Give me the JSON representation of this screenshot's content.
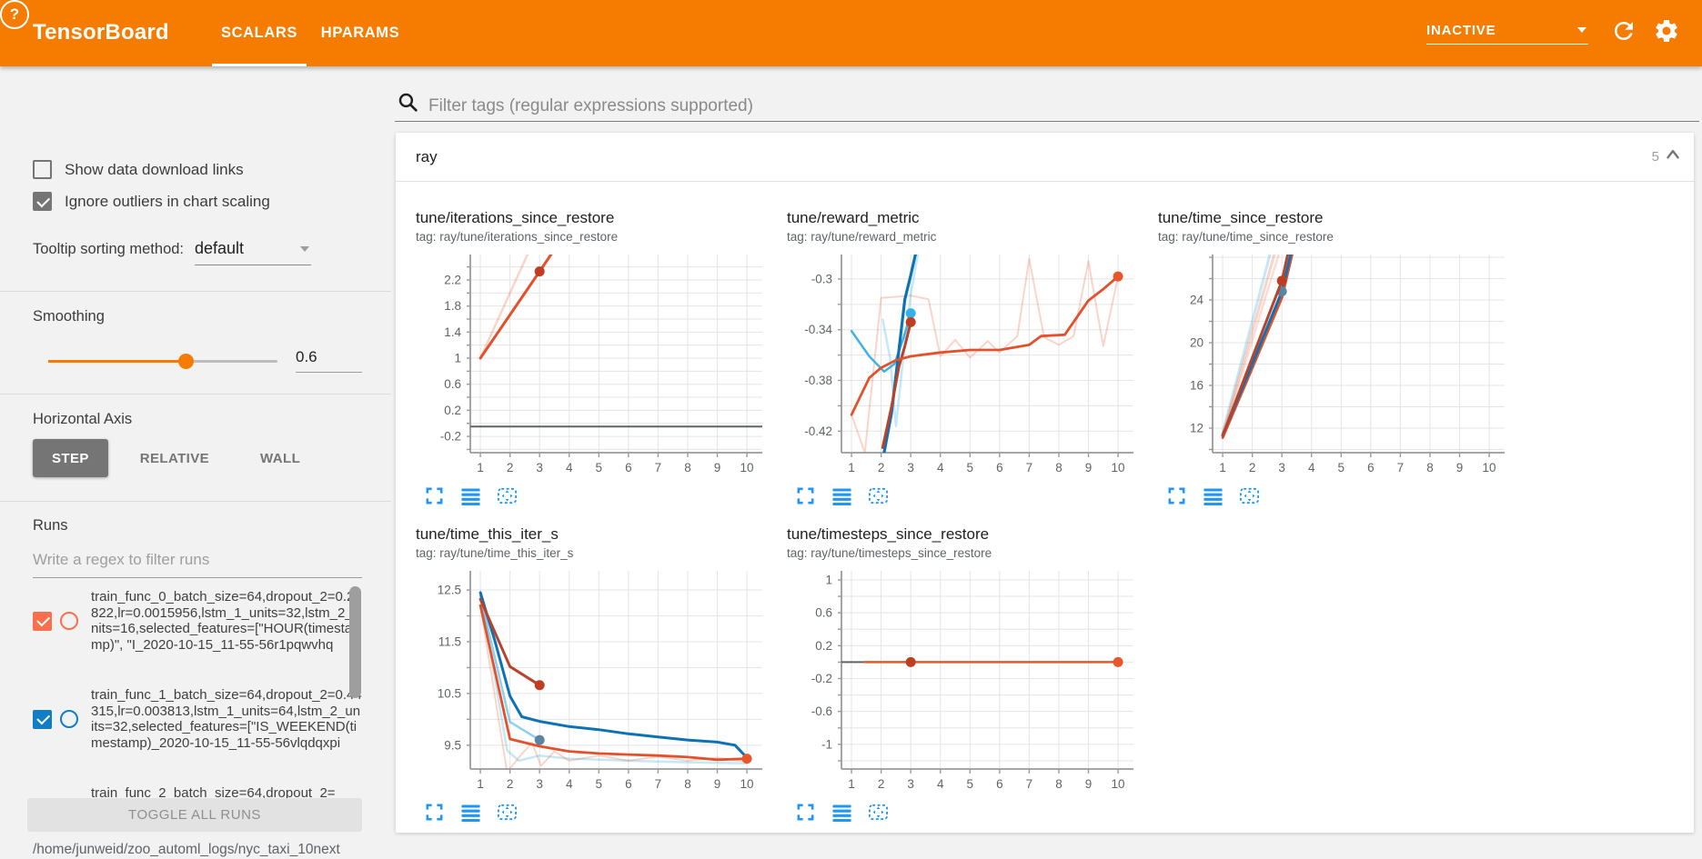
{
  "header": {
    "title": "TensorBoard",
    "tabs": [
      {
        "label": "SCALARS",
        "active": true
      },
      {
        "label": "HPARAMS",
        "active": false
      }
    ],
    "status_dropdown": "INACTIVE",
    "accent_color": "#f57c00"
  },
  "sidebar": {
    "checkboxes": [
      {
        "label": "Show data download links",
        "checked": false
      },
      {
        "label": "Ignore outliers in chart scaling",
        "checked": true
      }
    ],
    "tooltip_sorting": {
      "label": "Tooltip sorting method:",
      "value": "default"
    },
    "smoothing": {
      "label": "Smoothing",
      "value": "0.6",
      "percent": 60
    },
    "horizontal_axis": {
      "label": "Horizontal Axis",
      "options": [
        {
          "label": "STEP",
          "selected": true
        },
        {
          "label": "RELATIVE",
          "selected": false
        },
        {
          "label": "WALL",
          "selected": false
        }
      ]
    },
    "runs": {
      "label": "Runs",
      "filter_placeholder": "Write a regex to filter runs",
      "items": [
        {
          "name": "train_func_0_batch_size=64,dropout_2=0.21822,lr=0.0015956,lstm_1_units=32,lstm_2_units=16,selected_features=[\"HOUR(timestamp)\", \"I_2020-10-15_11-55-56r1pqwvhq",
          "color": "#fb6f4d",
          "checked": true
        },
        {
          "name": "train_func_1_batch_size=64,dropout_2=0.44315,lr=0.003813,lstm_1_units=64,lstm_2_units=32,selected_features=[\"IS_WEEKEND(timestamp)_2020-10-15_11-55-56vlqdqxpi",
          "color": "#0f7ec7",
          "checked": true
        },
        {
          "name": "train_func_2_batch_size=64,dropout_2=",
          "partial": true
        }
      ],
      "toggle_all_label": "TOGGLE ALL RUNS",
      "log_path": "/home/junweid/zoo_automl_logs/nyc_taxi_10next"
    }
  },
  "main": {
    "filter_placeholder": "Filter tags (regular expressions supported)",
    "section": {
      "name": "ray",
      "count": "5"
    },
    "toolbar_icons": [
      "expand",
      "data-table",
      "fit-domain"
    ],
    "toolbar_icon_color": "#2196f3"
  },
  "chart_data": [
    {
      "type": "line",
      "title": "tune/iterations_since_restore",
      "tag": "tag: ray/tune/iterations_since_restore",
      "xlim": [
        0.66,
        10.52
      ],
      "x_ticks": [
        1,
        2,
        3,
        4,
        5,
        6,
        7,
        8,
        9,
        10
      ],
      "ylim": [
        -0.45,
        2.59
      ],
      "grid_step": 0.2,
      "y_ticks": [
        [
          2.2,
          "2.2"
        ],
        [
          1.8,
          "1.8"
        ],
        [
          1.4,
          "1.4"
        ],
        [
          1,
          "1"
        ],
        [
          0.6,
          "0.6"
        ],
        [
          0.2,
          "0.2"
        ],
        [
          -0.2,
          "-0.2"
        ]
      ],
      "series": [
        {
          "name": "train_func_0 raw",
          "color": "#ef5327",
          "opacity": 0.25,
          "width": 2.5,
          "points": [
            [
              1,
              1
            ],
            [
              2.7,
              2.7
            ]
          ]
        },
        {
          "name": "flat-run",
          "color": "#5f6368",
          "opacity": 1,
          "width": 2,
          "points": [
            [
              0.66,
              -0.05
            ],
            [
              10.52,
              -0.05
            ]
          ]
        },
        {
          "name": "train_func_0 smoothed",
          "color": "#e2512b",
          "opacity": 1,
          "width": 3,
          "points": [
            [
              1,
              1
            ],
            [
              3,
              2.33
            ],
            [
              3.4,
              2.6
            ]
          ],
          "dot": [
            3,
            2.33
          ],
          "dot_color": "#bf3e22"
        }
      ]
    },
    {
      "type": "line",
      "title": "tune/reward_metric",
      "tag": "tag: ray/tune/reward_metric",
      "xlim": [
        0.66,
        10.52
      ],
      "x_ticks": [
        1,
        2,
        3,
        4,
        5,
        6,
        7,
        8,
        9,
        10
      ],
      "ylim": [
        -0.437,
        -0.2807
      ],
      "grid_step": 0.02,
      "y_ticks": [
        [
          -0.3,
          "-0.3"
        ],
        [
          -0.34,
          "-0.34"
        ],
        [
          -0.38,
          "-0.38"
        ],
        [
          -0.42,
          "-0.42"
        ]
      ],
      "series": [
        {
          "name": "train_func_0 raw",
          "color": "#ef5327",
          "opacity": 0.25,
          "width": 2,
          "points": [
            [
              1,
              -0.407
            ],
            [
              1.45,
              -0.437
            ],
            [
              2,
              -0.315
            ],
            [
              3,
              -0.313
            ],
            [
              3.6,
              -0.316
            ],
            [
              4,
              -0.361
            ],
            [
              4.5,
              -0.348
            ],
            [
              5,
              -0.362
            ],
            [
              5.6,
              -0.349
            ],
            [
              6,
              -0.358
            ],
            [
              6.6,
              -0.345
            ],
            [
              7,
              -0.284
            ],
            [
              7.5,
              -0.346
            ],
            [
              8,
              -0.352
            ],
            [
              8.5,
              -0.345
            ],
            [
              9,
              -0.286
            ],
            [
              9.5,
              -0.353
            ],
            [
              10,
              -0.298
            ]
          ]
        },
        {
          "name": "train_func_1 raw",
          "color": "#3fb3e5",
          "opacity": 0.3,
          "width": 2.5,
          "points": [
            [
              2.05,
              -0.332
            ],
            [
              2.3,
              -0.362
            ],
            [
              2.5,
              -0.416
            ],
            [
              2.75,
              -0.362
            ],
            [
              3,
              -0.312
            ],
            [
              3.35,
              -0.266
            ]
          ]
        },
        {
          "name": "train_func_2 smoothed",
          "color": "#3fb3e5",
          "opacity": 1,
          "width": 2.5,
          "points": [
            [
              1,
              -0.341
            ],
            [
              1.6,
              -0.361
            ],
            [
              2.1,
              -0.373
            ],
            [
              2.45,
              -0.367
            ],
            [
              2.75,
              -0.347
            ],
            [
              3,
              -0.327
            ]
          ],
          "dot": [
            3,
            -0.327
          ],
          "dot_color": "#35b1ea"
        },
        {
          "name": "train_func_1 smoothed",
          "color": "#0d72b4",
          "opacity": 1,
          "width": 3.2,
          "points": [
            [
              2.05,
              -0.443
            ],
            [
              2.35,
              -0.406
            ],
            [
              2.6,
              -0.356
            ],
            [
              2.8,
              -0.316
            ],
            [
              3,
              -0.297
            ],
            [
              3.3,
              -0.266
            ]
          ]
        },
        {
          "name": "dark-red smoothed",
          "color": "#b8432c",
          "opacity": 1,
          "width": 3,
          "points": [
            [
              2.05,
              -0.433
            ],
            [
              2.35,
              -0.401
            ],
            [
              2.6,
              -0.369
            ],
            [
              2.8,
              -0.353
            ],
            [
              3,
              -0.334
            ]
          ],
          "dot": [
            3,
            -0.334
          ],
          "dot_color": "#bf3e22"
        },
        {
          "name": "train_func_0 smoothed",
          "color": "#e2512b",
          "opacity": 1,
          "width": 2.8,
          "points": [
            [
              1,
              -0.407
            ],
            [
              1.6,
              -0.378
            ],
            [
              2,
              -0.37
            ],
            [
              2.5,
              -0.364
            ],
            [
              3,
              -0.361
            ],
            [
              4,
              -0.358
            ],
            [
              5,
              -0.356
            ],
            [
              6,
              -0.356
            ],
            [
              7,
              -0.352
            ],
            [
              7.4,
              -0.345
            ],
            [
              8.2,
              -0.344
            ],
            [
              9,
              -0.317
            ],
            [
              9.5,
              -0.308
            ],
            [
              10,
              -0.298
            ]
          ],
          "dot": [
            10,
            -0.298
          ],
          "dot_color": "#e8562c"
        }
      ]
    },
    {
      "type": "line",
      "title": "tune/time_since_restore",
      "tag": "tag: ray/tune/time_since_restore",
      "xlim": [
        0.66,
        10.52
      ],
      "x_ticks": [
        1,
        2,
        3,
        4,
        5,
        6,
        7,
        8,
        9,
        10
      ],
      "ylim": [
        9.7,
        28.26
      ],
      "grid_step": 2,
      "y_ticks": [
        [
          24,
          "24"
        ],
        [
          20,
          "20"
        ],
        [
          16,
          "16"
        ],
        [
          12,
          "12"
        ]
      ],
      "series": [
        {
          "name": "raw blue",
          "color": "#3fb3e5",
          "opacity": 0.3,
          "width": 3,
          "points": [
            [
              1,
              11.6
            ],
            [
              2.6,
              28.3
            ]
          ]
        },
        {
          "name": "raw orange",
          "color": "#ef5327",
          "opacity": 0.25,
          "width": 3,
          "points": [
            [
              1,
              11.4
            ],
            [
              2.75,
              28.3
            ]
          ]
        },
        {
          "name": "raw orange 2",
          "color": "#ef5327",
          "opacity": 0.2,
          "width": 2.5,
          "points": [
            [
              1,
              11.25
            ],
            [
              2.9,
              28.3
            ]
          ]
        },
        {
          "name": "train_func_0 smoothed",
          "color": "#e2512b",
          "opacity": 1,
          "width": 2.8,
          "points": [
            [
              1,
              11.1
            ],
            [
              2,
              17.6
            ],
            [
              3,
              24.2
            ],
            [
              3.35,
              28.3
            ]
          ]
        },
        {
          "name": "train_func_1 smoothed",
          "color": "#0d72b4",
          "opacity": 1,
          "width": 3,
          "points": [
            [
              1,
              11.35
            ],
            [
              2,
              18.0
            ],
            [
              3,
              24.8
            ],
            [
              3.3,
              28.3
            ]
          ],
          "dot": [
            3,
            24.8
          ],
          "dot_color": "#5b84a3"
        },
        {
          "name": "dark-red smoothed",
          "color": "#b8432c",
          "opacity": 1,
          "width": 3,
          "points": [
            [
              1,
              11.3
            ],
            [
              2,
              18.6
            ],
            [
              3,
              25.8
            ],
            [
              3.2,
              28.3
            ]
          ],
          "dot": [
            3,
            25.8
          ],
          "dot_color": "#bf3e22"
        }
      ]
    },
    {
      "type": "line",
      "title": "tune/time_this_iter_s",
      "tag": "tag: ray/tune/time_this_iter_s",
      "xlim": [
        0.66,
        10.52
      ],
      "x_ticks": [
        1,
        2,
        3,
        4,
        5,
        6,
        7,
        8,
        9,
        10
      ],
      "ylim": [
        9.04,
        12.87
      ],
      "grid_step": 0.5,
      "y_ticks": [
        [
          12.5,
          "12.5"
        ],
        [
          11.5,
          "11.5"
        ],
        [
          10.5,
          "10.5"
        ],
        [
          9.5,
          "9.5"
        ]
      ],
      "series": [
        {
          "name": "raw blue",
          "color": "#3fb3e5",
          "opacity": 0.3,
          "width": 2.5,
          "points": [
            [
              1,
              12.45
            ],
            [
              1.9,
              9.4
            ],
            [
              2.3,
              9.2
            ],
            [
              3,
              9.3
            ],
            [
              4,
              9.24
            ],
            [
              6,
              9.2
            ],
            [
              8,
              9.17
            ],
            [
              10,
              9.15
            ]
          ]
        },
        {
          "name": "raw orange",
          "color": "#ef5327",
          "opacity": 0.25,
          "width": 2,
          "points": [
            [
              1,
              12.2
            ],
            [
              1.9,
              8.98
            ],
            [
              2.4,
              9.33
            ],
            [
              2.75,
              9.55
            ],
            [
              3.05,
              9.1
            ],
            [
              3.5,
              9.38
            ],
            [
              4,
              9.2
            ],
            [
              5,
              9.3
            ],
            [
              6,
              9.2
            ],
            [
              7,
              9.28
            ],
            [
              8,
              9.2
            ],
            [
              9,
              9.26
            ],
            [
              10,
              9.18
            ]
          ]
        },
        {
          "name": "train_func_2 smoothed",
          "color": "#3fb3e5",
          "opacity": 0.6,
          "width": 2.5,
          "points": [
            [
              1,
              12.38
            ],
            [
              2,
              9.95
            ],
            [
              3,
              9.6
            ]
          ],
          "dot": [
            3,
            9.6
          ],
          "dot_color": "#5b84a3"
        },
        {
          "name": "train_func_1 smoothed",
          "color": "#0d72b4",
          "opacity": 1,
          "width": 3,
          "points": [
            [
              1,
              12.45
            ],
            [
              1.5,
              11.5
            ],
            [
              2,
              10.45
            ],
            [
              2.4,
              10.05
            ],
            [
              3,
              9.96
            ],
            [
              4,
              9.86
            ],
            [
              5,
              9.8
            ],
            [
              6,
              9.72
            ],
            [
              7,
              9.66
            ],
            [
              8,
              9.6
            ],
            [
              9,
              9.56
            ],
            [
              9.6,
              9.5
            ],
            [
              10,
              9.26
            ]
          ]
        },
        {
          "name": "train_func_0 smoothed",
          "color": "#e2512b",
          "opacity": 1,
          "width": 2.8,
          "points": [
            [
              1,
              12.2
            ],
            [
              2,
              9.62
            ],
            [
              3,
              9.48
            ],
            [
              4,
              9.38
            ],
            [
              5,
              9.34
            ],
            [
              6,
              9.32
            ],
            [
              7,
              9.3
            ],
            [
              8,
              9.27
            ],
            [
              9,
              9.22
            ],
            [
              10,
              9.24
            ]
          ],
          "dot": [
            10,
            9.24
          ],
          "dot_color": "#e8562c"
        },
        {
          "name": "dark-red smoothed",
          "color": "#b8432c",
          "opacity": 1,
          "width": 3,
          "points": [
            [
              1,
              12.32
            ],
            [
              2,
              11.02
            ],
            [
              3,
              10.66
            ]
          ],
          "dot": [
            3,
            10.66
          ],
          "dot_color": "#bf3e22"
        }
      ]
    },
    {
      "type": "line",
      "title": "tune/timesteps_since_restore",
      "tag": "tag: ray/tune/timesteps_since_restore",
      "xlim": [
        0.66,
        10.52
      ],
      "x_ticks": [
        1,
        2,
        3,
        4,
        5,
        6,
        7,
        8,
        9,
        10
      ],
      "ylim": [
        -1.3,
        1.11
      ],
      "grid_step": 0.2,
      "y_ticks": [
        [
          1,
          "1"
        ],
        [
          0.6,
          "0.6"
        ],
        [
          0.2,
          "0.2"
        ],
        [
          -0.2,
          "-0.2"
        ],
        [
          -0.6,
          "-0.6"
        ],
        [
          -1,
          "-1"
        ]
      ],
      "series": [
        {
          "name": "flat-gray",
          "color": "#5f6368",
          "opacity": 1,
          "width": 2,
          "points": [
            [
              0.66,
              0
            ],
            [
              1.45,
              0
            ]
          ]
        },
        {
          "name": "train_func_0 smoothed",
          "color": "#e8562c",
          "opacity": 1,
          "width": 2.5,
          "points": [
            [
              1.45,
              0
            ],
            [
              10,
              0
            ]
          ],
          "dot": [
            10,
            0
          ],
          "dot_color": "#e8562c"
        },
        {
          "name": "dark-red point",
          "color": "#b8432c",
          "opacity": 1,
          "width": 2.5,
          "points": [
            [
              3,
              0
            ],
            [
              3,
              0
            ]
          ],
          "dot": [
            3,
            0
          ],
          "dot_color": "#bf3e22"
        }
      ]
    }
  ]
}
